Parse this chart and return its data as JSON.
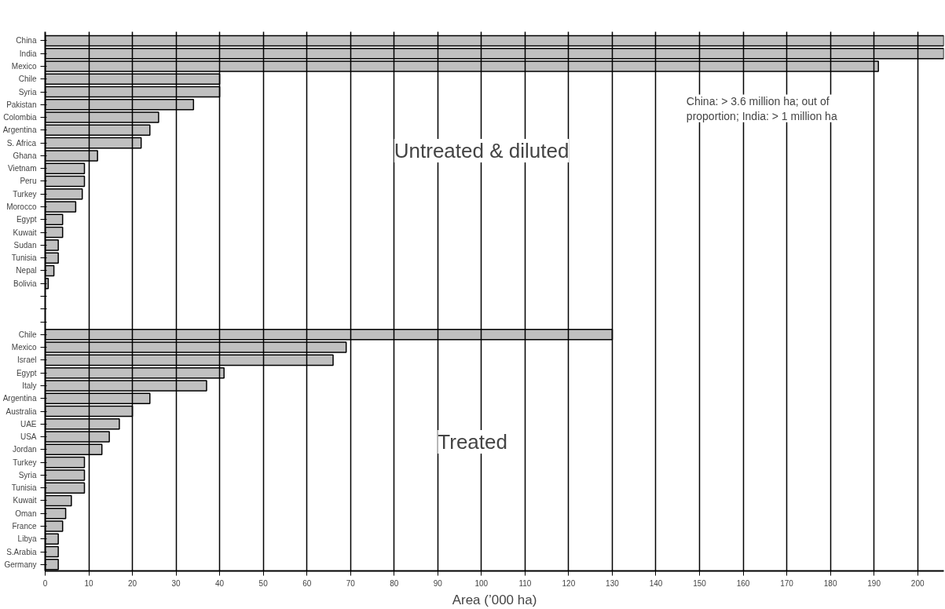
{
  "chart_data": {
    "type": "bar",
    "orientation": "horizontal",
    "xlabel": "Area (’000 ha)",
    "categories": [
      "China",
      "India",
      "Mexico",
      "Chile",
      "Syria",
      "Pakistan",
      "Colombia",
      "Argentina",
      "S. Africa",
      "Ghana",
      "Vietnam",
      "Peru",
      "Turkey",
      "Morocco",
      "Egypt",
      "Kuwait",
      "Sudan",
      "Tunisia",
      "Nepal",
      "Bolivia",
      null,
      null,
      null,
      "Chile",
      "Mexico",
      "Israel",
      "Egypt",
      "Italy",
      "Argentina",
      "Australia",
      "UAE",
      "USA",
      "Jordan",
      "Turkey",
      "Syria",
      "Tunisia",
      "Kuwait",
      "Oman",
      "France",
      "Libya",
      "S.Arabia",
      "Germany"
    ],
    "values": [
      206,
      206,
      191,
      40,
      40,
      34,
      26,
      24,
      22,
      12,
      9,
      9,
      8.5,
      7,
      4,
      4,
      3,
      3,
      2,
      0.7,
      null,
      null,
      null,
      130,
      69,
      66,
      41,
      37,
      24,
      20,
      17,
      14.7,
      13,
      9,
      9,
      9,
      6,
      4.7,
      4,
      3,
      3,
      3
    ],
    "color": "#c0c0c0",
    "xlim": [
      0,
      206
    ],
    "xticks": [
      0,
      10,
      20,
      30,
      40,
      50,
      60,
      70,
      80,
      90,
      100,
      110,
      120,
      130,
      140,
      150,
      160,
      170,
      180,
      190,
      200
    ],
    "grid": "x",
    "annotations": [
      "Untreated & diluted",
      "Treated",
      "China: > 3.6 million ha; out of\nproportion; India: > 1 million ha"
    ]
  }
}
